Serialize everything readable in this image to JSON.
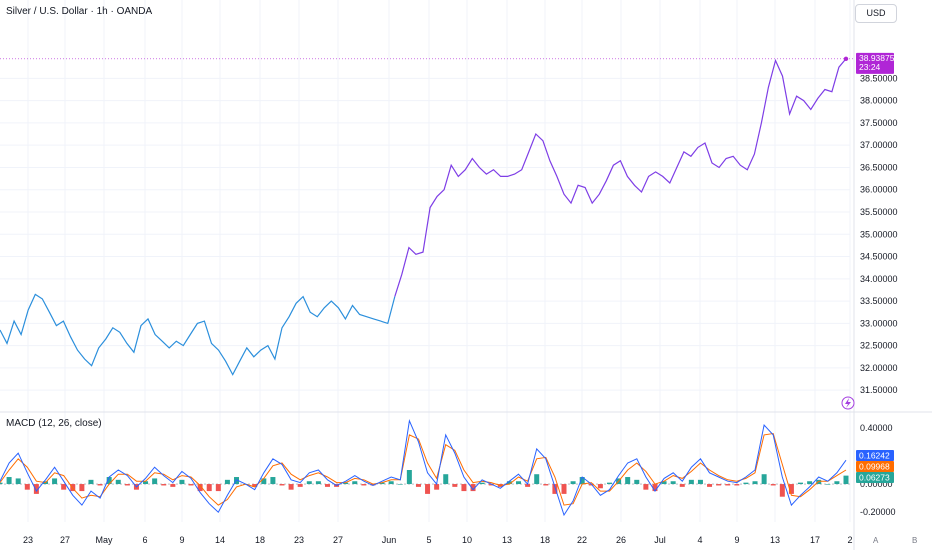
{
  "header": {
    "symbol_title": "Silver / U.S. Dollar · 1h · OANDA",
    "currency": "USD"
  },
  "indicator": {
    "macd_title": "MACD (12, 26, close)"
  },
  "footer": {
    "a_label": "A",
    "b_label": "B"
  },
  "colors": {
    "price_early": "#2b8fdc",
    "price_late": "#7e3ee6",
    "last_price_bg": "#b026d6",
    "macd_line": "#2962ff",
    "signal_line": "#ff6d00",
    "hist_pos": "#26a69a",
    "hist_neg": "#ef5350"
  },
  "chart_data": [
    {
      "type": "line",
      "title": "Silver / U.S. Dollar · 1h · OANDA",
      "x_tick_labels": [
        "23",
        "27",
        "May",
        "6",
        "9",
        "14",
        "18",
        "23",
        "27",
        "Jun",
        "5",
        "10",
        "13",
        "18",
        "22",
        "26",
        "Jul",
        "4",
        "9",
        "13",
        "17",
        "2"
      ],
      "y_tick_labels": [
        "31.50000",
        "32.00000",
        "32.50000",
        "33.00000",
        "33.50000",
        "34.00000",
        "34.50000",
        "35.00000",
        "35.50000",
        "36.00000",
        "36.50000",
        "37.00000",
        "37.50000",
        "38.00000",
        "38.50000"
      ],
      "ylim": [
        31.1,
        39.9
      ],
      "last_price": {
        "value": "38.93875",
        "countdown": "23:24"
      },
      "series": [
        {
          "values": [
            32.85,
            32.55,
            33.05,
            32.75,
            33.3,
            33.65,
            33.55,
            33.25,
            32.95,
            33.05,
            32.7,
            32.4,
            32.2,
            32.05,
            32.45,
            32.65,
            32.9,
            32.8,
            32.55,
            32.35,
            32.95,
            33.1,
            32.75,
            32.6,
            32.45,
            32.6,
            32.5,
            32.75,
            33.0,
            33.05,
            32.55,
            32.4,
            32.15,
            31.85,
            32.15,
            32.45,
            32.25,
            32.4,
            32.5,
            32.2,
            32.9,
            33.15,
            33.45,
            33.6,
            33.25,
            33.15,
            33.35,
            33.5,
            33.35,
            33.1,
            33.4,
            33.2,
            33.15,
            33.1,
            33.05,
            33.0,
            33.6,
            34.1,
            34.7,
            34.55,
            34.6,
            35.6,
            35.85,
            36.0,
            36.55,
            36.3,
            36.45,
            36.7,
            36.5,
            36.35,
            36.45,
            36.3,
            36.3,
            36.35,
            36.45,
            36.85,
            37.25,
            37.1,
            36.65,
            36.3,
            35.9,
            35.7,
            36.1,
            36.05,
            35.7,
            35.9,
            36.2,
            36.55,
            36.65,
            36.3,
            36.1,
            35.95,
            36.3,
            36.4,
            36.3,
            36.15,
            36.5,
            36.85,
            36.75,
            36.95,
            37.05,
            36.6,
            36.5,
            36.7,
            36.75,
            36.55,
            36.45,
            36.8,
            37.5,
            38.3,
            38.9,
            38.55,
            37.7,
            38.1,
            38.0,
            37.8,
            38.05,
            38.25,
            38.2,
            38.75,
            38.94
          ]
        },
        {
          "name": "",
          "values": []
        }
      ]
    },
    {
      "type": "line",
      "title": "MACD (12, 26, close)",
      "y_tick_labels": [
        "-0.20000",
        "0.00000",
        "0.40000"
      ],
      "ylim": [
        -0.27,
        0.47
      ],
      "last_values": {
        "macd": "0.16242",
        "signal": "0.09968",
        "histogram": "0.06273"
      },
      "series": [
        {
          "name": "",
          "values": [
            0.02,
            0.15,
            0.22,
            0.08,
            -0.05,
            0.03,
            0.12,
            0.02,
            -0.08,
            -0.15,
            -0.05,
            -0.1,
            0.05,
            0.1,
            0.06,
            -0.02,
            0.04,
            0.12,
            0.06,
            0.01,
            0.09,
            0.04,
            -0.06,
            -0.14,
            -0.2,
            -0.08,
            0.03,
            0.0,
            -0.04,
            0.08,
            0.18,
            0.14,
            0.03,
            0.01,
            0.08,
            0.1,
            0.03,
            -0.01,
            0.02,
            0.06,
            0.02,
            -0.01,
            0.02,
            0.05,
            0.03,
            0.45,
            0.3,
            0.08,
            0.0,
            0.35,
            0.22,
            0.05,
            -0.04,
            0.03,
            0.0,
            -0.03,
            0.02,
            0.07,
            0.0,
            0.25,
            0.18,
            -0.02,
            -0.22,
            -0.12,
            0.05,
            0.0,
            -0.08,
            -0.04,
            0.06,
            0.15,
            0.18,
            0.05,
            -0.05,
            0.04,
            0.08,
            0.02,
            0.12,
            0.18,
            0.08,
            0.05,
            0.02,
            0.01,
            0.05,
            0.1,
            0.42,
            0.35,
            0.05,
            -0.15,
            -0.08,
            -0.02,
            0.05,
            0.02,
            0.08,
            0.17
          ]
        },
        {
          "name": "",
          "values": [
            0.01,
            0.1,
            0.18,
            0.12,
            0.02,
            0.01,
            0.08,
            0.06,
            -0.03,
            -0.1,
            -0.08,
            -0.09,
            0.0,
            0.07,
            0.07,
            0.02,
            0.02,
            0.08,
            0.07,
            0.03,
            0.06,
            0.05,
            -0.01,
            -0.09,
            -0.15,
            -0.11,
            -0.02,
            0.0,
            -0.02,
            0.04,
            0.13,
            0.15,
            0.07,
            0.03,
            0.06,
            0.08,
            0.05,
            0.01,
            0.01,
            0.04,
            0.03,
            0.0,
            0.01,
            0.03,
            0.03,
            0.35,
            0.32,
            0.15,
            0.04,
            0.28,
            0.24,
            0.1,
            0.01,
            0.02,
            0.01,
            -0.01,
            0.0,
            0.05,
            0.02,
            0.18,
            0.19,
            0.05,
            -0.15,
            -0.14,
            0.0,
            0.01,
            -0.05,
            -0.05,
            0.02,
            0.1,
            0.15,
            0.09,
            0.0,
            0.02,
            0.06,
            0.04,
            0.09,
            0.15,
            0.1,
            0.06,
            0.03,
            0.02,
            0.04,
            0.08,
            0.35,
            0.36,
            0.14,
            -0.08,
            -0.09,
            -0.04,
            0.02,
            0.02,
            0.06,
            0.1
          ]
        },
        {
          "name": "",
          "values": [
            0.01,
            0.05,
            0.04,
            -0.04,
            -0.07,
            0.02,
            0.04,
            -0.04,
            -0.05,
            -0.05,
            0.03,
            -0.01,
            0.05,
            0.03,
            -0.01,
            -0.04,
            0.02,
            0.04,
            -0.01,
            -0.02,
            0.03,
            -0.01,
            -0.05,
            -0.05,
            -0.05,
            0.03,
            0.05,
            0.0,
            -0.02,
            0.04,
            0.05,
            -0.01,
            -0.04,
            -0.02,
            0.02,
            0.02,
            -0.02,
            -0.02,
            0.01,
            0.02,
            -0.01,
            -0.01,
            0.01,
            0.02,
            0.0,
            0.1,
            -0.02,
            -0.07,
            -0.04,
            0.07,
            -0.02,
            -0.05,
            -0.05,
            0.01,
            -0.01,
            -0.02,
            0.02,
            0.02,
            -0.02,
            0.07,
            -0.01,
            -0.07,
            -0.07,
            0.02,
            0.05,
            -0.01,
            -0.03,
            0.01,
            0.04,
            0.05,
            0.03,
            -0.04,
            -0.05,
            0.02,
            0.02,
            -0.02,
            0.03,
            0.03,
            -0.02,
            -0.01,
            -0.01,
            -0.01,
            0.01,
            0.02,
            0.07,
            -0.01,
            -0.09,
            -0.07,
            0.01,
            0.02,
            0.03,
            0.0,
            0.02,
            0.06
          ]
        }
      ]
    }
  ]
}
